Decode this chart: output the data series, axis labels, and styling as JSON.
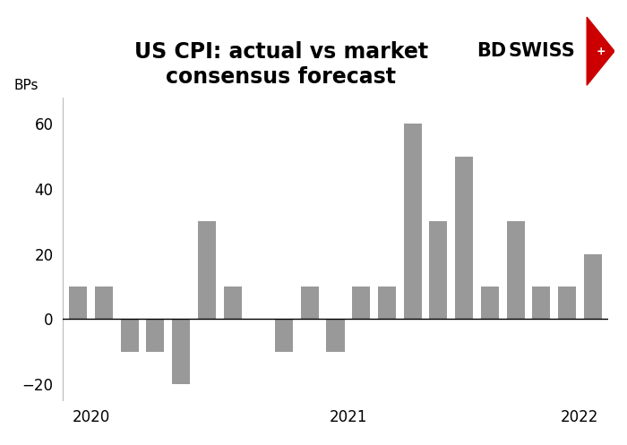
{
  "title": "US CPI: actual vs market\nconsensus forecast",
  "ylabel": "BPs",
  "bar_color": "#999999",
  "background_color": "#ffffff",
  "bar_values": [
    10,
    10,
    -10,
    -10,
    -20,
    30,
    10,
    0,
    -10,
    10,
    -10,
    10,
    10,
    60,
    30,
    50,
    10,
    30,
    10,
    10,
    20
  ],
  "x_positions": [
    0,
    1,
    2,
    3,
    4,
    5,
    6,
    7,
    8,
    9,
    10,
    11,
    12,
    13,
    14,
    15,
    16,
    17,
    18,
    19,
    20
  ],
  "x_tick_positions": [
    0.5,
    10.5,
    19.5
  ],
  "x_tick_labels": [
    "2020",
    "2021",
    "2022"
  ],
  "ylim": [
    -25,
    68
  ],
  "yticks": [
    -20,
    0,
    20,
    40,
    60
  ],
  "bar_width": 0.7,
  "zero_line_color": "#000000",
  "title_fontsize": 17,
  "ylabel_fontsize": 11,
  "tick_fontsize": 12,
  "logo_bd_color": "#000000",
  "logo_swiss_color": "#000000",
  "logo_red": "#cc0000"
}
